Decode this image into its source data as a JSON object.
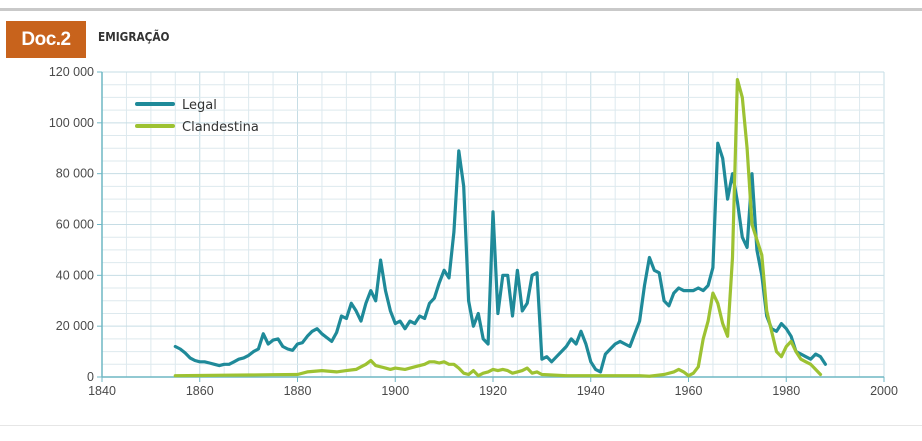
{
  "header": {
    "badge": "Doc.2",
    "title": "EMIGRAÇÃO"
  },
  "colors": {
    "legal": "#1f8a99",
    "clandestina": "#9dc232",
    "badge": "#c8631c",
    "grid": "#dde9ee",
    "axis": "#6fb7c4"
  },
  "chart_data": {
    "type": "line",
    "title": "EMIGRAÇÃO",
    "xlabel": "",
    "ylabel": "",
    "xlim": [
      1840,
      2000
    ],
    "ylim": [
      0,
      120000
    ],
    "x_ticks": [
      1840,
      1860,
      1880,
      1900,
      1920,
      1940,
      1960,
      1980,
      2000
    ],
    "x_tick_labels": [
      "1840",
      "1860",
      "1880",
      "1900",
      "1920",
      "1940",
      "1960",
      "1980",
      "2000"
    ],
    "y_ticks": [
      0,
      20000,
      40000,
      60000,
      80000,
      100000,
      120000
    ],
    "y_tick_labels": [
      "0",
      "20 000",
      "40 000",
      "60 000",
      "80 000",
      "100 000",
      "120 000"
    ],
    "grid": true,
    "legend_position": "top-left",
    "series": [
      {
        "name": "Legal",
        "x": [
          1855,
          1856,
          1857,
          1858,
          1859,
          1860,
          1861,
          1862,
          1863,
          1864,
          1865,
          1866,
          1867,
          1868,
          1869,
          1870,
          1871,
          1872,
          1873,
          1874,
          1875,
          1876,
          1877,
          1878,
          1879,
          1880,
          1881,
          1882,
          1883,
          1884,
          1885,
          1886,
          1887,
          1888,
          1889,
          1890,
          1891,
          1892,
          1893,
          1894,
          1895,
          1896,
          1897,
          1898,
          1899,
          1900,
          1901,
          1902,
          1903,
          1904,
          1905,
          1906,
          1907,
          1908,
          1909,
          1910,
          1911,
          1912,
          1913,
          1914,
          1915,
          1916,
          1917,
          1918,
          1919,
          1920,
          1921,
          1922,
          1923,
          1924,
          1925,
          1926,
          1927,
          1928,
          1929,
          1930,
          1931,
          1932,
          1933,
          1934,
          1935,
          1936,
          1937,
          1938,
          1939,
          1940,
          1941,
          1942,
          1943,
          1944,
          1945,
          1946,
          1947,
          1948,
          1949,
          1950,
          1951,
          1952,
          1953,
          1954,
          1955,
          1956,
          1957,
          1958,
          1959,
          1960,
          1961,
          1962,
          1963,
          1964,
          1965,
          1966,
          1967,
          1968,
          1969,
          1970,
          1971,
          1972,
          1973,
          1974,
          1975,
          1976,
          1977,
          1978,
          1979,
          1980,
          1981,
          1982,
          1983,
          1984,
          1985,
          1986,
          1987,
          1988
        ],
        "values": [
          12000,
          11000,
          9500,
          7500,
          6500,
          6000,
          6000,
          5500,
          5000,
          4500,
          5000,
          5000,
          6000,
          7000,
          7500,
          8500,
          10000,
          11000,
          17000,
          13000,
          14500,
          15000,
          12000,
          11000,
          10500,
          13000,
          13500,
          16000,
          18000,
          19000,
          17000,
          15500,
          14000,
          17500,
          24000,
          23000,
          29000,
          26000,
          22000,
          29000,
          34000,
          30000,
          46000,
          34000,
          26000,
          21000,
          22000,
          19000,
          22000,
          21000,
          24000,
          23000,
          29000,
          31000,
          37000,
          42000,
          39000,
          57000,
          89000,
          75000,
          30000,
          20000,
          25000,
          15000,
          13000,
          65000,
          25000,
          40000,
          40000,
          24000,
          42000,
          26000,
          29000,
          40000,
          41000,
          7000,
          8000,
          6000,
          8000,
          10000,
          12000,
          15000,
          13000,
          18000,
          13000,
          6000,
          3000,
          2000,
          9000,
          11000,
          13000,
          14000,
          13000,
          12000,
          17000,
          22000,
          36000,
          47000,
          42000,
          41000,
          30000,
          28000,
          33000,
          35000,
          34000,
          34000,
          34000,
          35000,
          34000,
          36000,
          43000,
          92000,
          86000,
          70000,
          80000,
          69000,
          55000,
          51000,
          80000,
          50000,
          40000,
          24000,
          19000,
          18000,
          21000,
          19000,
          16000,
          10000,
          9000,
          8000,
          7000,
          9000,
          8000,
          5000
        ]
      },
      {
        "name": "Clandestina",
        "x": [
          1855,
          1860,
          1865,
          1870,
          1875,
          1880,
          1882,
          1885,
          1888,
          1890,
          1892,
          1893,
          1894,
          1895,
          1896,
          1897,
          1898,
          1899,
          1900,
          1902,
          1904,
          1906,
          1907,
          1908,
          1909,
          1910,
          1911,
          1912,
          1913,
          1914,
          1915,
          1916,
          1917,
          1918,
          1919,
          1920,
          1921,
          1922,
          1923,
          1924,
          1925,
          1926,
          1927,
          1928,
          1929,
          1930,
          1935,
          1940,
          1945,
          1950,
          1952,
          1955,
          1957,
          1958,
          1959,
          1960,
          1961,
          1962,
          1963,
          1964,
          1965,
          1966,
          1967,
          1968,
          1969,
          1970,
          1971,
          1972,
          1973,
          1974,
          1975,
          1976,
          1977,
          1978,
          1979,
          1980,
          1981,
          1982,
          1983,
          1984,
          1985,
          1986,
          1987
        ],
        "values": [
          500,
          600,
          700,
          800,
          900,
          1000,
          2000,
          2500,
          2000,
          2500,
          3000,
          4000,
          5000,
          6500,
          4500,
          4000,
          3500,
          3000,
          3500,
          3000,
          4000,
          5000,
          6000,
          6000,
          5500,
          6000,
          5000,
          5000,
          3500,
          1500,
          1000,
          2500,
          500,
          1500,
          2000,
          3000,
          2500,
          3000,
          2500,
          1500,
          2000,
          2500,
          3500,
          1500,
          2000,
          1000,
          500,
          500,
          500,
          500,
          300,
          1000,
          2000,
          3000,
          2000,
          500,
          1500,
          4000,
          15000,
          22000,
          33000,
          29000,
          21000,
          16000,
          47000,
          117000,
          110000,
          90000,
          60000,
          54000,
          48000,
          26000,
          18000,
          10000,
          8000,
          12000,
          14000,
          10000,
          7000,
          6000,
          5000,
          3000,
          1000
        ]
      }
    ]
  }
}
